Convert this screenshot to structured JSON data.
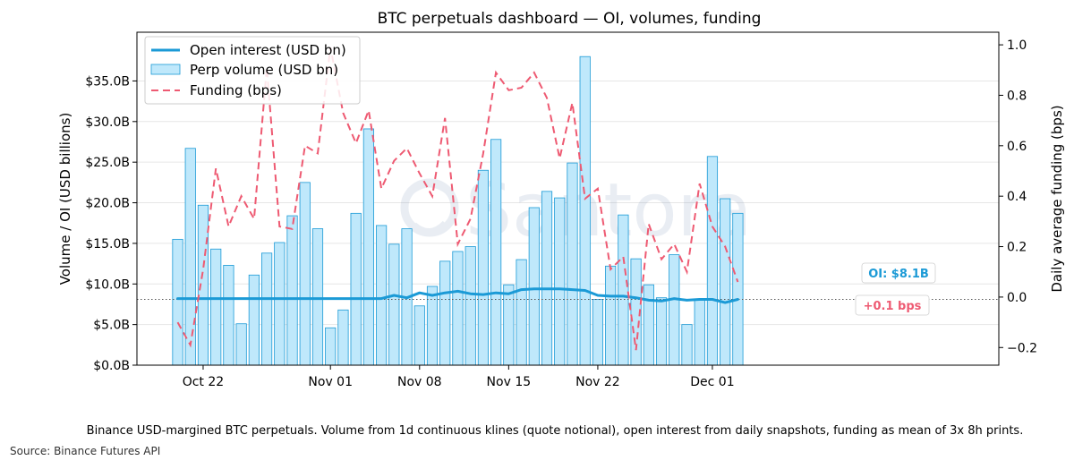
{
  "chart_data": {
    "type": "bar+line",
    "title": "BTC perpetuals dashboard — OI, volumes, funding",
    "ylabel_left": "Volume / OI (USD billions)",
    "ylabel_right": "Daily average funding (bps)",
    "ylim_left": [
      0,
      41
    ],
    "ylim_right": [
      -0.27,
      1.05
    ],
    "left_ticks": [
      0,
      5,
      10,
      15,
      20,
      25,
      30,
      35
    ],
    "left_tick_labels": [
      "$0.0B",
      "$5.0B",
      "$10.0B",
      "$15.0B",
      "$20.0B",
      "$25.0B",
      "$30.0B",
      "$35.0B"
    ],
    "right_ticks": [
      -0.2,
      0.0,
      0.2,
      0.4,
      0.6,
      0.8,
      1.0
    ],
    "right_tick_labels": [
      "−0.2",
      "0.0",
      "0.2",
      "0.4",
      "0.6",
      "0.8",
      "1.0"
    ],
    "xlim": [
      -3.2,
      64.5
    ],
    "x_ticks": [
      {
        "index": 2,
        "label": "Oct 22"
      },
      {
        "index": 12,
        "label": "Nov 01"
      },
      {
        "index": 19,
        "label": "Nov 08"
      },
      {
        "index": 26,
        "label": "Nov 15"
      },
      {
        "index": 33,
        "label": "Nov 22"
      },
      {
        "index": 42,
        "label": "Dec 01"
      }
    ],
    "start_date": "Oct 20",
    "legend": {
      "position": "top-left",
      "entries": [
        "Open interest (USD bn)",
        "Perp volume (USD bn)",
        "Funding (bps)"
      ]
    },
    "series": [
      {
        "name": "Perp volume (USD bn)",
        "kind": "bar",
        "values": [
          15.5,
          26.7,
          19.7,
          14.3,
          12.3,
          5.1,
          11.1,
          13.8,
          15.1,
          18.4,
          22.5,
          16.8,
          4.6,
          6.8,
          18.7,
          29.1,
          17.2,
          14.9,
          16.8,
          7.3,
          9.7,
          12.8,
          14.0,
          14.6,
          24.0,
          27.8,
          9.9,
          13.0,
          19.4,
          21.4,
          20.6,
          24.9,
          38.0,
          8.1,
          12.2,
          18.5,
          13.1,
          9.9,
          8.3,
          13.6,
          5.0,
          8.0,
          25.7,
          20.5,
          18.7
        ]
      },
      {
        "name": "Open interest (USD bn)",
        "kind": "line",
        "values": [
          8.2,
          8.2,
          8.2,
          8.2,
          8.2,
          8.2,
          8.2,
          8.2,
          8.2,
          8.2,
          8.2,
          8.2,
          8.2,
          8.2,
          8.2,
          8.2,
          8.2,
          8.6,
          8.3,
          8.9,
          8.6,
          8.9,
          9.1,
          8.8,
          8.7,
          8.9,
          8.8,
          9.3,
          9.4,
          9.4,
          9.4,
          9.3,
          9.2,
          8.6,
          8.5,
          8.5,
          8.3,
          8.0,
          7.9,
          8.2,
          8.0,
          8.1,
          8.1,
          7.7,
          8.1
        ]
      },
      {
        "name": "Funding (bps)",
        "kind": "dashed-line",
        "values": [
          -0.1,
          -0.19,
          0.11,
          0.51,
          0.28,
          0.4,
          0.31,
          0.91,
          0.28,
          0.27,
          0.6,
          0.57,
          0.99,
          0.73,
          0.61,
          0.74,
          0.43,
          0.54,
          0.59,
          0.49,
          0.4,
          0.71,
          0.21,
          0.31,
          0.57,
          0.89,
          0.82,
          0.83,
          0.89,
          0.79,
          0.55,
          0.77,
          0.39,
          0.43,
          0.11,
          0.16,
          -0.21,
          0.29,
          0.15,
          0.21,
          0.1,
          0.45,
          0.28,
          0.2,
          0.06
        ]
      }
    ],
    "reference_line": {
      "axis": "left",
      "value": 8.1,
      "style": "dotted"
    },
    "annotations": [
      {
        "text": "OI: $8.1B",
        "color": "#1b9ad6"
      },
      {
        "text": "+0.1 bps",
        "color": "#ee5a72"
      }
    ],
    "watermark": "Santora",
    "footnote": "Binance USD-margined BTC perpetuals. Volume from 1d continuous klines (quote notional), open interest from daily snapshots, funding as mean of 3x 8h prints.",
    "source": "Source: Binance Futures API"
  },
  "colors": {
    "bar_fill": "#bfe8fb",
    "bar_edge": "#1b9ad6",
    "oi_line": "#1b9ad6",
    "funding_line": "#ee5a72",
    "grid": "#e6e6e6"
  }
}
